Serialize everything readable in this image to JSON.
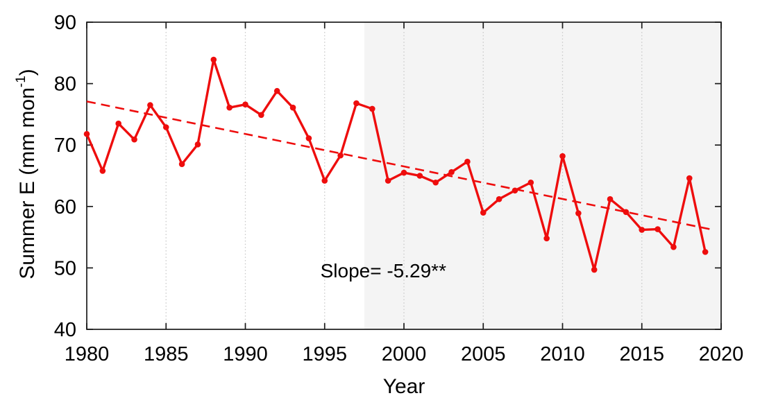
{
  "figure": {
    "background": "#ffffff"
  },
  "chart_data": {
    "type": "line",
    "title": "",
    "xlabel": "Year",
    "ylabel": "Summer E (mm mon⁻¹)",
    "ylabel_parts": {
      "main": "Summer E (mm mon",
      "sup": "-1",
      "close": ")"
    },
    "x": [
      1980,
      1981,
      1982,
      1983,
      1984,
      1985,
      1986,
      1987,
      1988,
      1989,
      1990,
      1991,
      1992,
      1993,
      1994,
      1995,
      1996,
      1997,
      1998,
      1999,
      2000,
      2001,
      2002,
      2003,
      2004,
      2005,
      2006,
      2007,
      2008,
      2009,
      2010,
      2011,
      2012,
      2013,
      2014,
      2015,
      2016,
      2017,
      2018,
      2019
    ],
    "series": [
      {
        "name": "Summer E",
        "color": "#ee0d0d",
        "values": [
          71.8,
          65.8,
          73.5,
          70.9,
          76.5,
          72.9,
          66.9,
          70.1,
          83.9,
          76.1,
          76.6,
          74.9,
          78.8,
          76.1,
          71.1,
          64.2,
          68.3,
          76.8,
          75.9,
          64.2,
          65.5,
          65.0,
          63.9,
          65.6,
          67.3,
          59.0,
          61.2,
          62.6,
          63.9,
          54.8,
          68.2,
          58.9,
          49.7,
          61.2,
          59.1,
          56.2,
          56.3,
          53.4,
          64.6,
          52.6
        ]
      }
    ],
    "trend": {
      "style": "dashed",
      "color": "#ee0d0d",
      "x_start": 1980,
      "y_start": 77.1,
      "x_end": 2019.5,
      "y_end": 56.2,
      "slope_per_decade": -5.29
    },
    "annotation": {
      "text": "Slope= -5.29**",
      "x": 1998.7,
      "y": 49.5
    },
    "x_ticks": [
      1980,
      1985,
      1990,
      1995,
      2000,
      2005,
      2010,
      2015,
      2020
    ],
    "y_ticks": [
      40,
      50,
      60,
      70,
      80,
      90
    ],
    "xlim": [
      1980,
      2020
    ],
    "ylim": [
      40,
      90
    ],
    "grid": {
      "x_dotted": true,
      "y": false,
      "color": "#c8c8c8"
    },
    "shaded_region": {
      "x_start": 1997.5,
      "x_end": 2020,
      "color": "#f4f4f4"
    },
    "axis_color": "#1a1a1a",
    "legend": "none"
  }
}
